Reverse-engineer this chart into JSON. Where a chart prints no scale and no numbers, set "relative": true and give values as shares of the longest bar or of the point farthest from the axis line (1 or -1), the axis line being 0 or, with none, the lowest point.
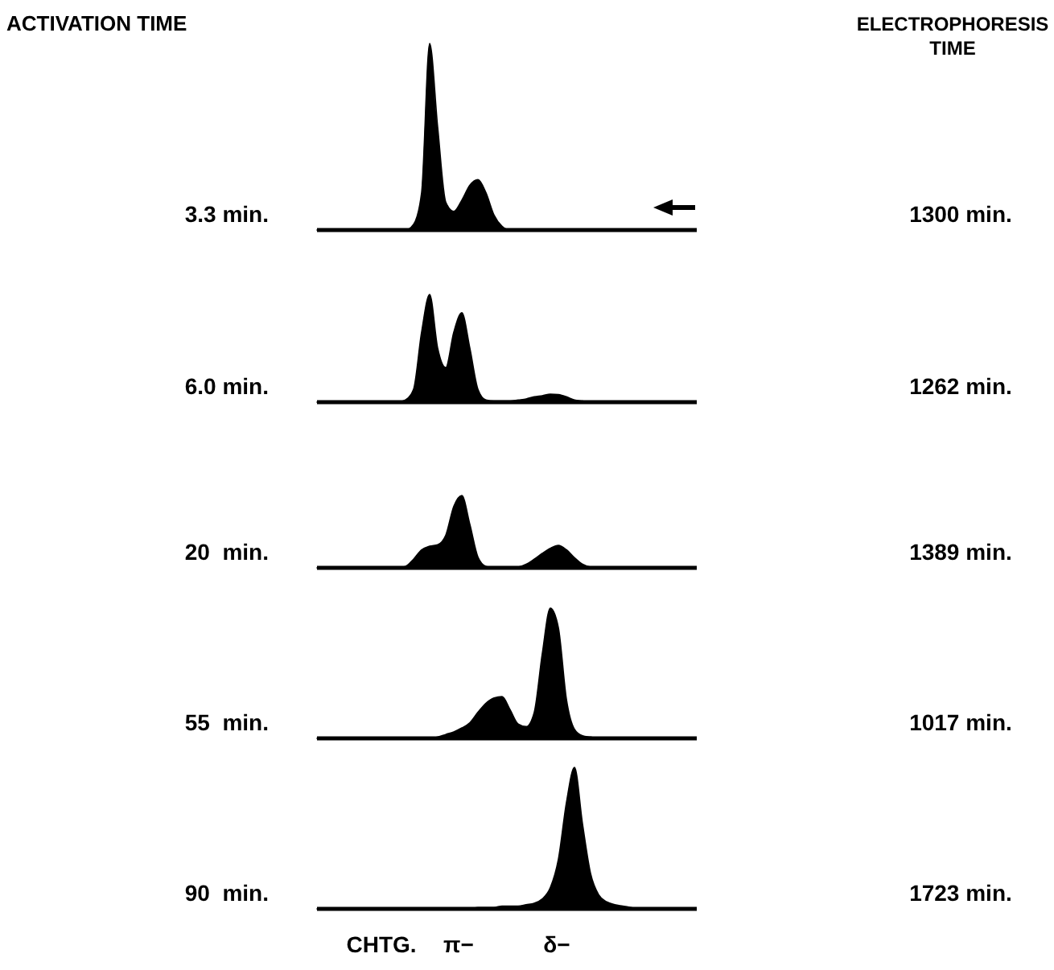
{
  "chart_data": [
    {
      "type": "area",
      "relative": true,
      "ylabel": "3.3 min.",
      "y2label": "1300 min.",
      "annotations": [
        "ACTIVATION TIME",
        "ELECTROPHORESIS TIME"
      ],
      "categories": [
        null,
        null,
        null,
        null,
        null,
        null,
        null,
        null,
        null,
        null,
        null,
        null,
        null,
        null,
        null,
        null,
        null,
        null,
        null,
        null,
        null,
        null,
        null,
        null,
        null,
        null,
        null,
        null,
        null,
        null,
        null,
        null,
        null,
        null,
        null,
        null,
        null,
        null,
        null,
        null,
        null,
        null,
        null,
        null,
        null,
        null,
        null,
        null
      ],
      "series": [
        {
          "color": "#000000",
          "values": [
            0,
            0,
            0,
            0,
            0,
            0,
            0,
            0,
            0,
            0,
            0,
            0,
            0.03,
            0.2,
            1,
            0.55,
            0.15,
            0.1,
            0.16,
            0.24,
            0.27,
            0.2,
            0.08,
            0.02,
            0,
            0,
            0,
            0,
            0,
            0,
            0,
            0,
            0,
            0,
            0,
            0,
            0,
            0,
            0,
            0,
            0,
            0,
            0,
            0,
            0,
            0,
            0,
            0
          ]
        }
      ]
    },
    {
      "type": "area",
      "relative": true,
      "ylabel": "6.0 min.",
      "y2label": "1262 min.",
      "categories": [
        null,
        null,
        null,
        null,
        null,
        null,
        null,
        null,
        null,
        null,
        null,
        null,
        null,
        null,
        null,
        null,
        null,
        null,
        null,
        null,
        null,
        null,
        null,
        null,
        null,
        null,
        null,
        null,
        null,
        null,
        null,
        null,
        null,
        null,
        null,
        null,
        null,
        null,
        null,
        null,
        null,
        null,
        null,
        null,
        null,
        null,
        null,
        null
      ],
      "series": [
        {
          "color": "#000000",
          "values": [
            0,
            0,
            0,
            0,
            0,
            0,
            0,
            0,
            0,
            0,
            0,
            0.02,
            0.12,
            0.65,
            1,
            0.5,
            0.32,
            0.65,
            0.83,
            0.5,
            0.12,
            0.02,
            0.01,
            0.01,
            0.01,
            0.02,
            0.03,
            0.05,
            0.06,
            0.075,
            0.07,
            0.05,
            0.02,
            0.01,
            0,
            0,
            0,
            0,
            0,
            0,
            0,
            0,
            0,
            0,
            0,
            0,
            0,
            0
          ]
        }
      ]
    },
    {
      "type": "area",
      "relative": true,
      "ylabel": "20  min.",
      "y2label": "1389 min.",
      "categories": [
        null,
        null,
        null,
        null,
        null,
        null,
        null,
        null,
        null,
        null,
        null,
        null,
        null,
        null,
        null,
        null,
        null,
        null,
        null,
        null,
        null,
        null,
        null,
        null,
        null,
        null,
        null,
        null,
        null,
        null,
        null,
        null,
        null,
        null,
        null,
        null,
        null,
        null,
        null,
        null,
        null,
        null,
        null,
        null,
        null,
        null,
        null,
        null
      ],
      "series": [
        {
          "color": "#000000",
          "values": [
            0,
            0,
            0,
            0,
            0,
            0,
            0,
            0,
            0,
            0,
            0,
            0.02,
            0.12,
            0.25,
            0.3,
            0.32,
            0.45,
            0.85,
            1,
            0.6,
            0.15,
            0.02,
            0,
            0,
            0,
            0.01,
            0.05,
            0.12,
            0.2,
            0.27,
            0.31,
            0.25,
            0.14,
            0.05,
            0.01,
            0,
            0,
            0,
            0,
            0,
            0,
            0,
            0,
            0,
            0,
            0,
            0,
            0
          ]
        }
      ]
    },
    {
      "type": "area",
      "relative": true,
      "ylabel": "55  min.",
      "y2label": "1017 min.",
      "categories": [
        null,
        null,
        null,
        null,
        null,
        null,
        null,
        null,
        null,
        null,
        null,
        null,
        null,
        null,
        null,
        null,
        null,
        null,
        null,
        null,
        null,
        null,
        null,
        null,
        null,
        null,
        null,
        null,
        null,
        null,
        null,
        null,
        null,
        null,
        null,
        null,
        null,
        null,
        null,
        null,
        null,
        null,
        null,
        null,
        null,
        null,
        null,
        null
      ],
      "series": [
        {
          "color": "#000000",
          "values": [
            0,
            0,
            0,
            0,
            0,
            0,
            0,
            0,
            0,
            0,
            0,
            0,
            0,
            0,
            0,
            0.01,
            0.03,
            0.05,
            0.08,
            0.12,
            0.2,
            0.27,
            0.31,
            0.32,
            0.22,
            0.11,
            0.09,
            0.2,
            0.65,
            1,
            0.85,
            0.3,
            0.07,
            0.02,
            0.01,
            0,
            0,
            0,
            0,
            0,
            0,
            0,
            0,
            0,
            0,
            0,
            0,
            0
          ]
        }
      ]
    },
    {
      "type": "area",
      "relative": true,
      "ylabel": "90  min.",
      "y2label": "1723 min.",
      "annotations": [
        "CHTG.",
        "π−",
        "δ−"
      ],
      "categories": [
        null,
        null,
        null,
        null,
        null,
        null,
        null,
        null,
        null,
        null,
        null,
        null,
        null,
        null,
        null,
        null,
        null,
        null,
        null,
        null,
        null,
        null,
        null,
        null,
        null,
        null,
        null,
        null,
        null,
        null,
        null,
        null,
        null,
        null,
        null,
        null,
        null,
        null,
        null,
        null,
        null,
        null,
        null,
        null,
        null,
        null,
        null,
        null
      ],
      "series": [
        {
          "color": "#000000",
          "values": [
            0,
            0,
            0,
            0,
            0,
            0,
            0,
            0,
            0,
            0,
            0,
            0,
            0,
            0,
            0,
            0,
            0,
            0,
            0,
            0,
            0.01,
            0.01,
            0.01,
            0.02,
            0.02,
            0.02,
            0.03,
            0.04,
            0.07,
            0.15,
            0.35,
            0.75,
            1,
            0.6,
            0.25,
            0.1,
            0.05,
            0.03,
            0.02,
            0.01,
            0,
            0,
            0,
            0,
            0,
            0,
            0,
            0
          ]
        }
      ]
    }
  ]
}
